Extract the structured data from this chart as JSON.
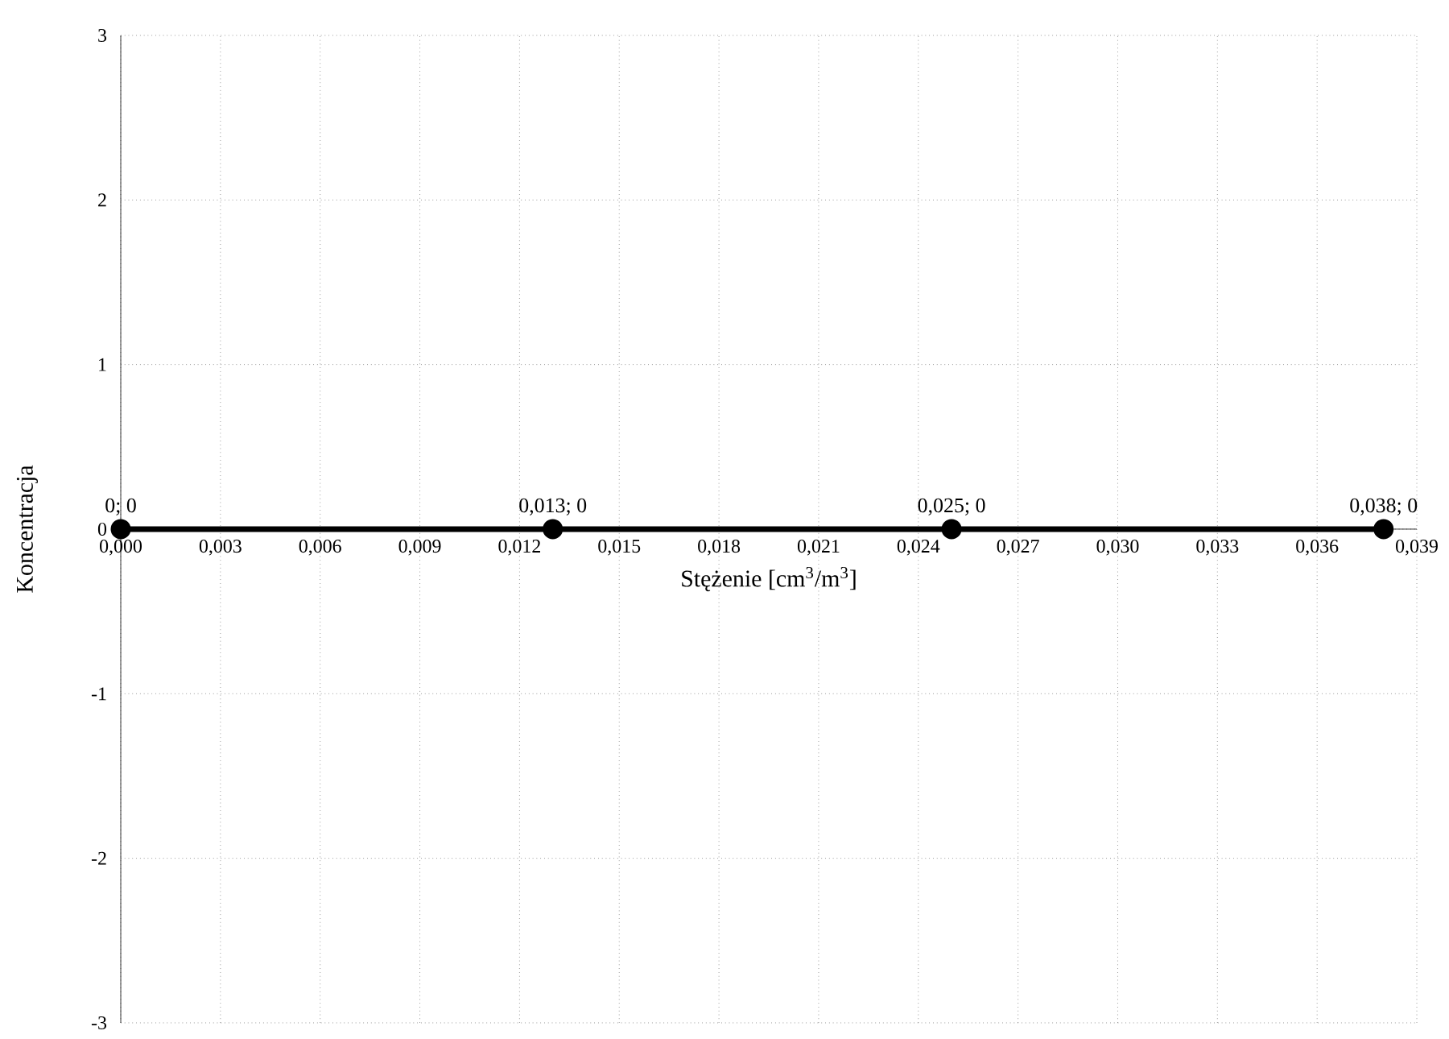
{
  "chart_data": {
    "type": "line",
    "xlabel": "Stężenie [cm$^{3}$/m$^{3}$]",
    "ylabel": "Koncentracja",
    "x": [
      0,
      0.013,
      0.025,
      0.038
    ],
    "values": [
      0,
      0,
      0,
      0
    ],
    "value_labels": [
      "0; 0",
      "0,013; 0",
      "0,025; 0",
      "0,038; 0"
    ],
    "color": "#000000",
    "marker": "circle",
    "line_style": "solid",
    "grid": true,
    "xlim": [
      0,
      0.039
    ],
    "ylim": [
      -3,
      3
    ],
    "xticks": [
      {
        "value": 0,
        "label": "0,000"
      },
      {
        "value": 0.003,
        "label": "0,003"
      },
      {
        "value": 0.006,
        "label": "0,006"
      },
      {
        "value": 0.009,
        "label": "0,009"
      },
      {
        "value": 0.012,
        "label": "0,012"
      },
      {
        "value": 0.015,
        "label": "0,015"
      },
      {
        "value": 0.018,
        "label": "0,018"
      },
      {
        "value": 0.021,
        "label": "0,021"
      },
      {
        "value": 0.024,
        "label": "0,024"
      },
      {
        "value": 0.027,
        "label": "0,027"
      },
      {
        "value": 0.03,
        "label": "0,030"
      },
      {
        "value": 0.033,
        "label": "0,033"
      },
      {
        "value": 0.036,
        "label": "0,036"
      },
      {
        "value": 0.039,
        "label": "0,039"
      }
    ],
    "yticks": [
      -3,
      -2,
      -1,
      0,
      1,
      2,
      3
    ]
  }
}
